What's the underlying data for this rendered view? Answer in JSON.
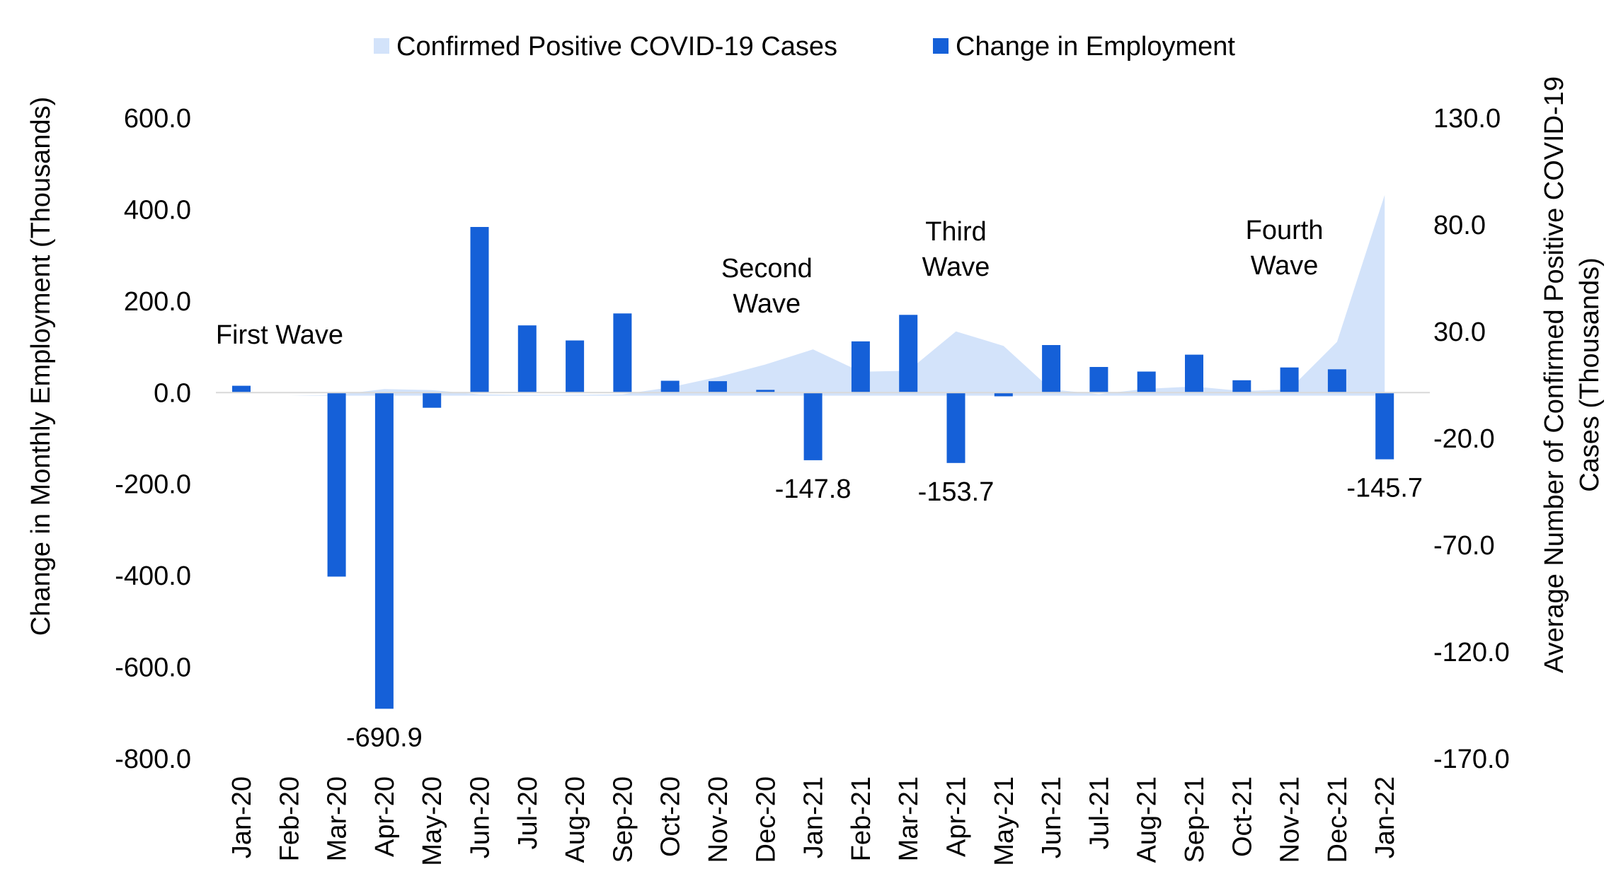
{
  "chart_data": {
    "type": "bar",
    "legend_position": "top",
    "grid": false,
    "colors": {
      "employment": "#1560d8",
      "cases": "#d3e3fa"
    },
    "categories": [
      "Jan-20",
      "Feb-20",
      "Mar-20",
      "Apr-20",
      "May-20",
      "Jun-20",
      "Jul-20",
      "Aug-20",
      "Sep-20",
      "Oct-20",
      "Nov-20",
      "Dec-20",
      "Jan-21",
      "Feb-21",
      "Mar-21",
      "Apr-21",
      "May-21",
      "Jun-21",
      "Jul-21",
      "Aug-21",
      "Sep-21",
      "Oct-21",
      "Nov-21",
      "Dec-21",
      "Jan-22"
    ],
    "series": [
      {
        "name": "Confirmed Positive COVID-19 Cases",
        "type": "area",
        "axis": "right",
        "values": [
          0,
          0,
          0.4,
          3.1,
          2.6,
          0.6,
          0.4,
          0.4,
          0.6,
          3.9,
          8.7,
          14.6,
          21.7,
          11.2,
          11.7,
          30.1,
          23.3,
          2.9,
          0.7,
          3.2,
          4.3,
          2.2,
          2.9,
          25.2,
          94.0
        ]
      },
      {
        "name": "Change in Employment",
        "type": "bar",
        "axis": "left",
        "values": [
          15.0,
          0,
          -402.0,
          -690.9,
          -33.0,
          362.0,
          147.0,
          114.0,
          173.0,
          26.0,
          25.0,
          6.0,
          -147.8,
          112.0,
          170.0,
          -153.7,
          -8.0,
          104.0,
          56.0,
          46.0,
          83.0,
          27.0,
          55.0,
          51.0,
          -145.7
        ]
      }
    ],
    "left_axis": {
      "label": "Change in Monthly Employment (Thousands)",
      "min": -800,
      "max": 600,
      "ticks": [
        "600.0",
        "400.0",
        "200.0",
        "0.0",
        "-200.0",
        "-400.0",
        "-600.0",
        "-800.0"
      ],
      "tick_values": [
        600,
        400,
        200,
        0,
        -200,
        -400,
        -600,
        -800
      ]
    },
    "right_axis": {
      "label_line1": "Average Number of Confirmed Positive COVID-19",
      "label_line2": "Cases (Thousands)",
      "min": -170,
      "max": 130,
      "ticks": [
        "130.0",
        "80.0",
        "30.0",
        "-20.0",
        "-70.0",
        "-120.0",
        "-170.0"
      ],
      "tick_values": [
        130,
        80,
        30,
        -20,
        -70,
        -120,
        -170
      ]
    },
    "bar_labels": [
      {
        "index": 3,
        "text": "-690.9"
      },
      {
        "index": 12,
        "text": "-147.8"
      },
      {
        "index": 15,
        "text": "-153.7"
      },
      {
        "index": 24,
        "text": "-145.7"
      }
    ],
    "annotations": [
      {
        "lines": [
          "First Wave"
        ],
        "index": 3
      },
      {
        "lines": [
          "Second",
          "Wave"
        ],
        "index": 11
      },
      {
        "lines": [
          "Third",
          "Wave"
        ],
        "index": 15
      },
      {
        "lines": [
          "Fourth",
          "Wave"
        ],
        "index": 22
      }
    ]
  }
}
